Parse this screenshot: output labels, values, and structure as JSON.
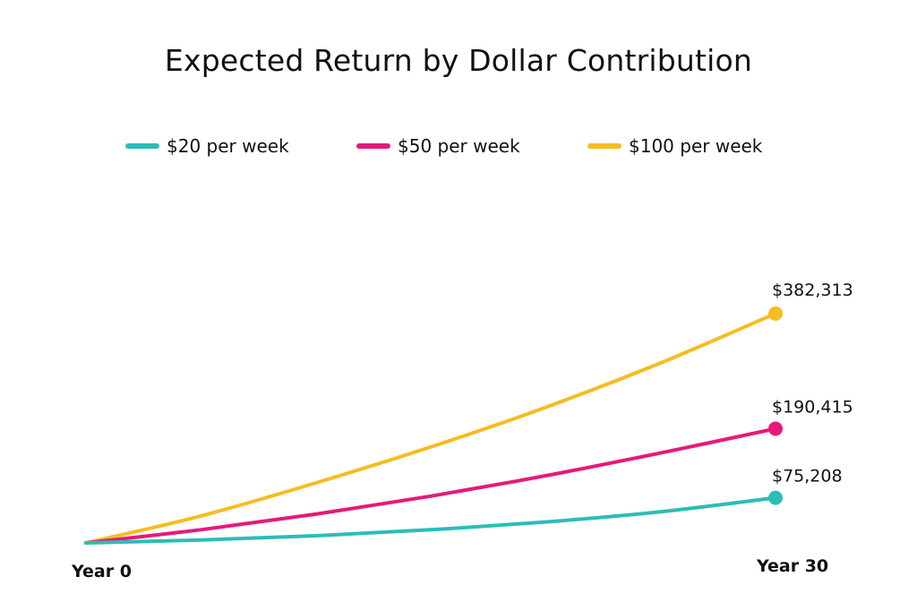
{
  "chart_data": {
    "type": "line",
    "title": "Expected Return by Dollar Contribution",
    "xlabel": "",
    "ylabel": "",
    "x_tick_labels": [
      "Year 0",
      "Year 30"
    ],
    "xlim": [
      0,
      30
    ],
    "ylim": [
      0,
      382313
    ],
    "grid": false,
    "legend_position": "top",
    "series": [
      {
        "name": "$20 per week",
        "color": "#2bbdb8",
        "x": [
          0,
          5,
          10,
          15,
          20,
          25,
          30
        ],
        "values": [
          0,
          5000,
          12000,
          22000,
          35000,
          52000,
          75208
        ],
        "end_label": "$75,208"
      },
      {
        "name": "$50 per week",
        "color": "#e6197a",
        "x": [
          0,
          5,
          10,
          15,
          20,
          25,
          30
        ],
        "values": [
          0,
          22000,
          48000,
          78000,
          112000,
          150000,
          190415
        ],
        "end_label": "$190,415"
      },
      {
        "name": "$100 per week",
        "color": "#f5bd22",
        "x": [
          0,
          5,
          10,
          15,
          20,
          25,
          30
        ],
        "values": [
          0,
          45000,
          100000,
          160000,
          226000,
          300000,
          382313
        ],
        "end_label": "$382,313"
      }
    ]
  }
}
